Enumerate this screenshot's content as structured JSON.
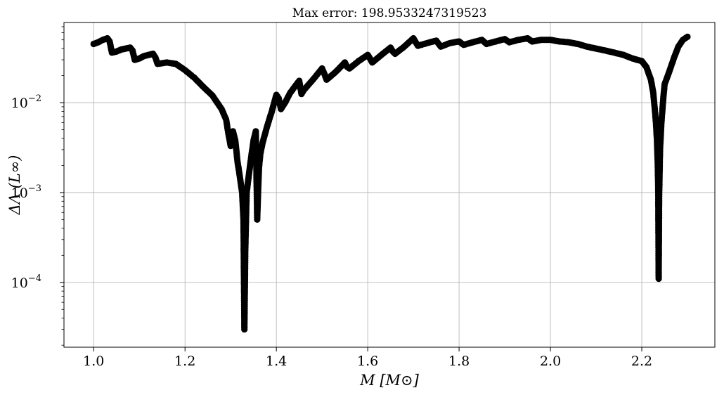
{
  "chart_data": {
    "type": "line",
    "title": "Max error: 198.9533247319523",
    "xlabel": "M [M⊙]",
    "ylabel": "ΔΛ (L∞)",
    "xlim": [
      0.935,
      2.36
    ],
    "ylim": [
      1.9e-05,
      0.078
    ],
    "yscale": "log",
    "grid": true,
    "legend": "none",
    "xticks": [
      "1.0",
      "1.2",
      "1.4",
      "1.6",
      "1.8",
      "2.0",
      "2.2"
    ],
    "yticks": [
      {
        "base": "10",
        "exp": "−2",
        "value": 0.01
      },
      {
        "base": "10",
        "exp": "−3",
        "value": 0.001
      },
      {
        "base": "10",
        "exp": "−4",
        "value": 0.0001
      }
    ],
    "line_color": "#000000",
    "marker": "circle",
    "series": [
      {
        "x": [
          1.0,
          1.01,
          1.02,
          1.03,
          1.035,
          1.04,
          1.05,
          1.06,
          1.07,
          1.08,
          1.085,
          1.09,
          1.1,
          1.11,
          1.12,
          1.13,
          1.135,
          1.14,
          1.16,
          1.18,
          1.2,
          1.22,
          1.24,
          1.26,
          1.28,
          1.29,
          1.295,
          1.3,
          1.305,
          1.31,
          1.315,
          1.32,
          1.325,
          1.328,
          1.33,
          1.332,
          1.335,
          1.34,
          1.345,
          1.35,
          1.355,
          1.358,
          1.36,
          1.362,
          1.365,
          1.37,
          1.38,
          1.39,
          1.4,
          1.405,
          1.41,
          1.42,
          1.43,
          1.44,
          1.45,
          1.455,
          1.46,
          1.48,
          1.5,
          1.505,
          1.51,
          1.53,
          1.55,
          1.555,
          1.56,
          1.58,
          1.6,
          1.605,
          1.61,
          1.63,
          1.65,
          1.655,
          1.66,
          1.68,
          1.7,
          1.705,
          1.71,
          1.73,
          1.75,
          1.76,
          1.78,
          1.8,
          1.81,
          1.83,
          1.85,
          1.86,
          1.88,
          1.9,
          1.91,
          1.93,
          1.95,
          1.96,
          1.98,
          2.0,
          2.02,
          2.04,
          2.06,
          2.08,
          2.1,
          2.12,
          2.14,
          2.16,
          2.18,
          2.19,
          2.2,
          2.21,
          2.22,
          2.225,
          2.228,
          2.231,
          2.233,
          2.235,
          2.236,
          2.237,
          2.238,
          2.24,
          2.243,
          2.247,
          2.25,
          2.26,
          2.27,
          2.28,
          2.29,
          2.3
        ],
        "y": [
          0.045,
          0.047,
          0.05,
          0.052,
          0.048,
          0.036,
          0.037,
          0.039,
          0.04,
          0.041,
          0.038,
          0.03,
          0.031,
          0.033,
          0.034,
          0.035,
          0.032,
          0.027,
          0.028,
          0.027,
          0.023,
          0.019,
          0.015,
          0.012,
          0.0085,
          0.0065,
          0.0045,
          0.0033,
          0.0048,
          0.0038,
          0.0022,
          0.0015,
          0.001,
          0.0005,
          3e-05,
          0.00023,
          0.001,
          0.0016,
          0.0025,
          0.0038,
          0.0048,
          0.0005,
          0.001,
          0.0019,
          0.0027,
          0.0036,
          0.0055,
          0.008,
          0.0122,
          0.0112,
          0.0085,
          0.0102,
          0.0128,
          0.015,
          0.0175,
          0.0125,
          0.0138,
          0.018,
          0.024,
          0.021,
          0.018,
          0.022,
          0.028,
          0.025,
          0.024,
          0.029,
          0.034,
          0.031,
          0.028,
          0.034,
          0.041,
          0.037,
          0.035,
          0.042,
          0.052,
          0.047,
          0.043,
          0.046,
          0.049,
          0.042,
          0.046,
          0.048,
          0.044,
          0.047,
          0.05,
          0.045,
          0.048,
          0.051,
          0.047,
          0.05,
          0.052,
          0.048,
          0.05,
          0.05,
          0.048,
          0.047,
          0.045,
          0.042,
          0.04,
          0.038,
          0.036,
          0.034,
          0.031,
          0.03,
          0.029,
          0.025,
          0.018,
          0.013,
          0.009,
          0.006,
          0.004,
          0.002,
          0.0011,
          0.00011,
          0.0009,
          0.003,
          0.006,
          0.011,
          0.016,
          0.022,
          0.031,
          0.042,
          0.05,
          0.054
        ]
      }
    ]
  }
}
